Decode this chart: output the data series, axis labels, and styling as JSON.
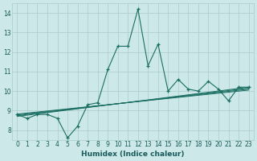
{
  "title": "",
  "xlabel": "Humidex (Indice chaleur)",
  "xlim": [
    -0.5,
    23.5
  ],
  "ylim": [
    7.5,
    14.5
  ],
  "xticks": [
    0,
    1,
    2,
    3,
    4,
    5,
    6,
    7,
    8,
    9,
    10,
    11,
    12,
    13,
    14,
    15,
    16,
    17,
    18,
    19,
    20,
    21,
    22,
    23
  ],
  "yticks": [
    8,
    9,
    10,
    11,
    12,
    13,
    14
  ],
  "background_color": "#cce8e8",
  "grid_color": "#aacccc",
  "line_color": "#1a6e62",
  "main_line_x": [
    0,
    1,
    2,
    3,
    4,
    5,
    6,
    7,
    8,
    9,
    10,
    11,
    12,
    13,
    14,
    15,
    16,
    17,
    18,
    19,
    20,
    21,
    22,
    23
  ],
  "main_line_y": [
    8.8,
    8.6,
    8.8,
    8.8,
    8.6,
    7.6,
    8.2,
    9.3,
    9.4,
    11.1,
    12.3,
    12.3,
    14.2,
    11.3,
    12.4,
    10.0,
    10.6,
    10.1,
    10.0,
    10.5,
    10.1,
    9.5,
    10.2,
    10.2
  ],
  "trend_lines": [
    [
      8.82,
      10.05
    ],
    [
      8.78,
      10.1
    ],
    [
      8.74,
      10.15
    ],
    [
      8.7,
      10.2
    ]
  ]
}
